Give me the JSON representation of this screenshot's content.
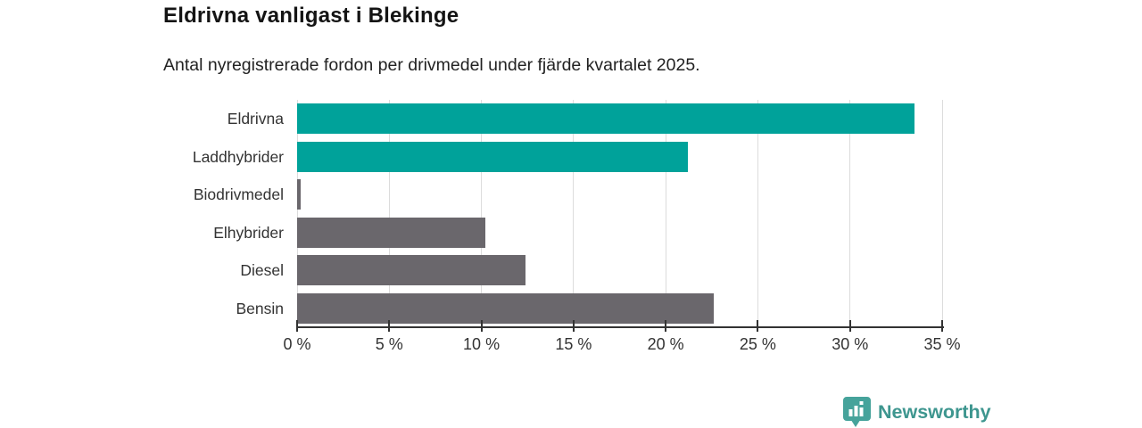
{
  "header": {
    "title": "Eldrivna vanligast i Blekinge",
    "subtitle": "Antal nyregistrerade fordon per drivmedel under fjärde kvartalet 2025."
  },
  "chart_data": {
    "type": "bar",
    "orientation": "horizontal",
    "title": "Eldrivna vanligast i Blekinge",
    "subtitle": "Antal nyregistrerade fordon per drivmedel under fjärde kvartalet 2025.",
    "categories": [
      "Eldrivna",
      "Laddhybrider",
      "Biodrivmedel",
      "Elhybrider",
      "Diesel",
      "Bensin"
    ],
    "values": [
      33.5,
      21.2,
      0.2,
      10.2,
      12.4,
      22.6
    ],
    "unit": "%",
    "bar_colors": [
      "#00a29a",
      "#00a29a",
      "#6a676c",
      "#6a676c",
      "#6a676c",
      "#6a676c"
    ],
    "xlabel": "",
    "ylabel": "",
    "xlim": [
      0,
      35
    ],
    "x_ticks": [
      0,
      5,
      10,
      15,
      20,
      25,
      30,
      35
    ],
    "x_tick_labels": [
      "0 %",
      "5 %",
      "10 %",
      "15 %",
      "20 %",
      "25 %",
      "30 %",
      "35 %"
    ],
    "grid": true,
    "legend": "none"
  },
  "colors": {
    "highlight": "#00a29a",
    "neutral": "#6a676c",
    "gridline": "#dcdcdc",
    "axis": "#333333"
  },
  "branding": {
    "logo_text": "Newsworthy",
    "logo_color": "#3e968f",
    "icon_name": "newsworthy-chart-pin-icon",
    "icon_fill": "#46a39b"
  }
}
